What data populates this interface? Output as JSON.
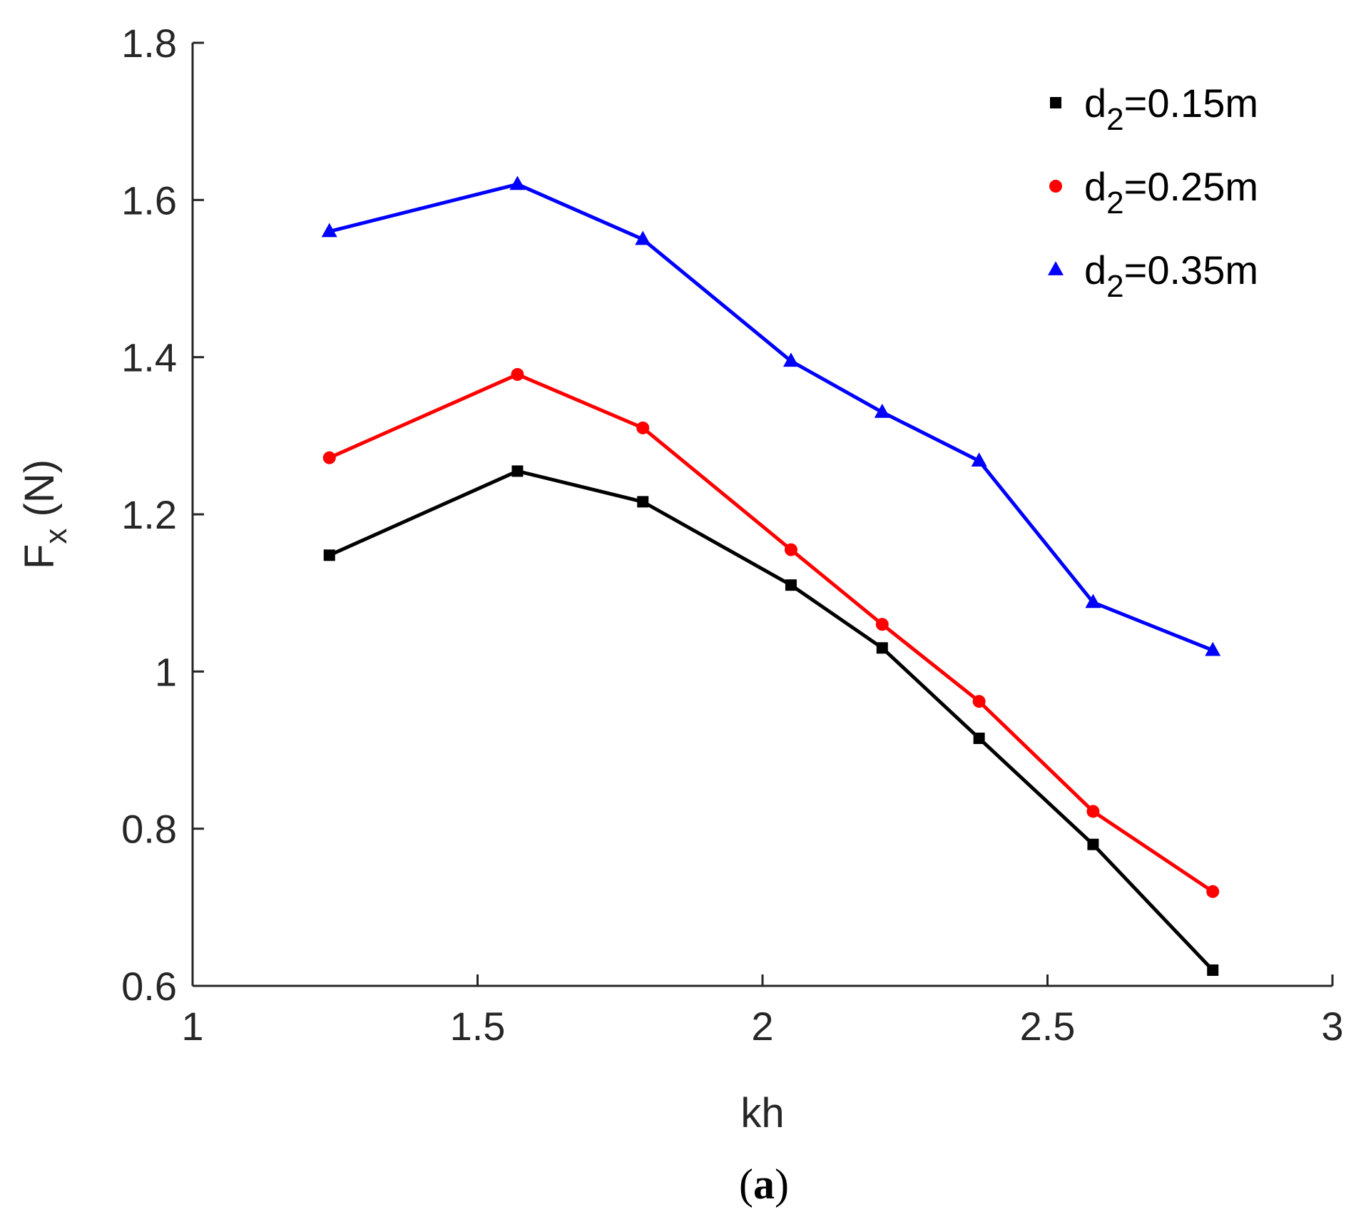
{
  "chart_data": {
    "type": "line",
    "title": "",
    "xlabel": "kh",
    "ylabel": "F",
    "ylabel_sub": "x",
    "ylabel_unit": " (N)",
    "xlim": [
      1,
      3
    ],
    "ylim": [
      0.6,
      1.8
    ],
    "xticks": [
      1,
      1.5,
      2,
      2.5,
      3
    ],
    "xtick_labels": [
      "1",
      "1.5",
      "2",
      "2.5",
      "3"
    ],
    "yticks": [
      0.6,
      0.8,
      1.0,
      1.2,
      1.4,
      1.6,
      1.8
    ],
    "ytick_labels": [
      "0.6",
      "0.8",
      "1",
      "1.2",
      "1.4",
      "1.6",
      "1.8"
    ],
    "grid": false,
    "legend_position": "top-right",
    "x": [
      1.24,
      1.57,
      1.79,
      2.05,
      2.21,
      2.38,
      2.58,
      2.79
    ],
    "series": [
      {
        "name": "d2=0.15m",
        "label_main": "d",
        "label_sub": "2",
        "label_rest": "=0.15m",
        "color": "#000000",
        "marker": "square",
        "values": [
          1.148,
          1.255,
          1.216,
          1.11,
          1.03,
          0.915,
          0.78,
          0.62
        ]
      },
      {
        "name": "d2=0.25m",
        "label_main": "d",
        "label_sub": "2",
        "label_rest": "=0.25m",
        "color": "#ff0000",
        "marker": "circle",
        "values": [
          1.272,
          1.378,
          1.31,
          1.155,
          1.06,
          0.962,
          0.822,
          0.72
        ]
      },
      {
        "name": "d2=0.35m",
        "label_main": "d",
        "label_sub": "2",
        "label_rest": "=0.35m",
        "color": "#0000ff",
        "marker": "triangle",
        "values": [
          1.56,
          1.62,
          1.55,
          1.395,
          1.33,
          1.268,
          1.088,
          1.027
        ]
      }
    ]
  },
  "caption": {
    "open": "(",
    "letter": "a",
    "close": ")"
  }
}
